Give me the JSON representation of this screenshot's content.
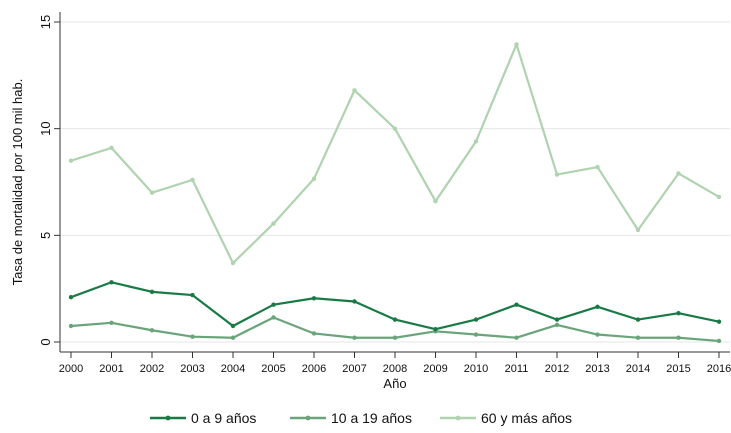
{
  "chart_data": {
    "type": "line",
    "xlabel": "Año",
    "ylabel": "Tasa de mortalidad por 100 mil hab.",
    "x": [
      "2000",
      "2001",
      "2002",
      "2003",
      "2004",
      "2005",
      "2006",
      "2007",
      "2008",
      "2009",
      "2010",
      "2011",
      "2012",
      "2013",
      "2014",
      "2015",
      "2016"
    ],
    "ylim": [
      0,
      15
    ],
    "yticks": [
      "0",
      "5",
      "10",
      "15"
    ],
    "grid": true,
    "legend_position": "bottom",
    "series": [
      {
        "name": "0 a 9 años",
        "color": "#1a7a46",
        "values": [
          2.1,
          2.8,
          2.35,
          2.2,
          0.75,
          1.75,
          2.05,
          1.9,
          1.05,
          0.6,
          1.05,
          1.75,
          1.05,
          1.65,
          1.05,
          1.35,
          0.95
        ]
      },
      {
        "name": "10 a 19 años",
        "color": "#6aa47a",
        "values": [
          0.75,
          0.9,
          0.55,
          0.25,
          0.2,
          1.15,
          0.4,
          0.2,
          0.2,
          0.5,
          0.35,
          0.2,
          0.8,
          0.35,
          0.2,
          0.2,
          0.05
        ]
      },
      {
        "name": "60 y más años",
        "color": "#afd3af",
        "values": [
          8.5,
          9.1,
          7.0,
          7.6,
          3.7,
          5.55,
          7.65,
          11.8,
          10.0,
          6.6,
          9.4,
          13.95,
          7.85,
          8.2,
          5.25,
          7.9,
          6.8
        ]
      }
    ]
  }
}
